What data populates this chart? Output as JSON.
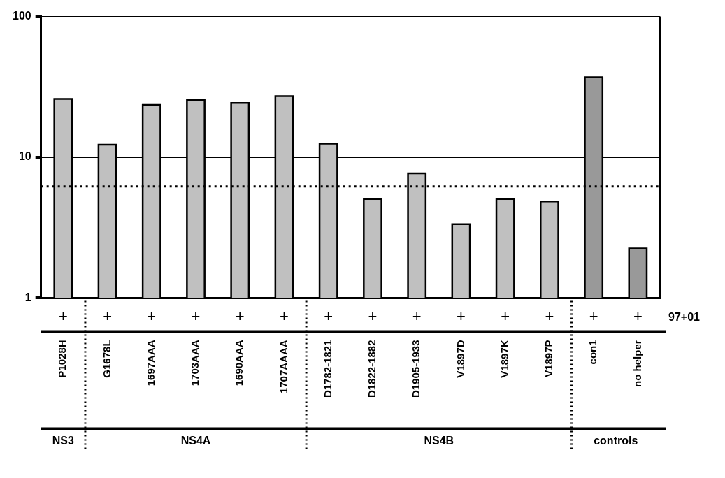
{
  "chart_data": {
    "type": "bar",
    "categories": [
      "P1028H",
      "G1678L",
      "1697AAA",
      "1703AAA",
      "1690AAA",
      "1707AAAA",
      "D1782-1821",
      "D1822-1882",
      "D1905-1933",
      "V1897D",
      "V1897K",
      "V1897P",
      "con1",
      "no helper"
    ],
    "values": [
      26,
      12.3,
      23.6,
      25.6,
      24.3,
      27.2,
      12.5,
      5.05,
      7.7,
      3.35,
      5.05,
      4.85,
      37,
      2.25
    ],
    "colors": [
      "#c0c0c0",
      "#c0c0c0",
      "#c0c0c0",
      "#c0c0c0",
      "#c0c0c0",
      "#c0c0c0",
      "#c0c0c0",
      "#c0c0c0",
      "#c0c0c0",
      "#c0c0c0",
      "#c0c0c0",
      "#c0c0c0",
      "#999999",
      "#999999"
    ],
    "log": "y",
    "ylim": [
      1,
      100
    ],
    "yticks": [
      1,
      10,
      100
    ],
    "grid": "y",
    "ref_lines": [
      {
        "axis": "y",
        "value": 6.2,
        "line_style": "dotted",
        "color": "#000000"
      }
    ],
    "annotations": [
      "+",
      "+",
      "+",
      "+",
      "+",
      "+",
      "+",
      "+",
      "+",
      "+",
      "+",
      "+",
      "+",
      "+",
      "97+01",
      "NS3",
      "NS4A",
      "NS4B",
      "controls"
    ]
  }
}
